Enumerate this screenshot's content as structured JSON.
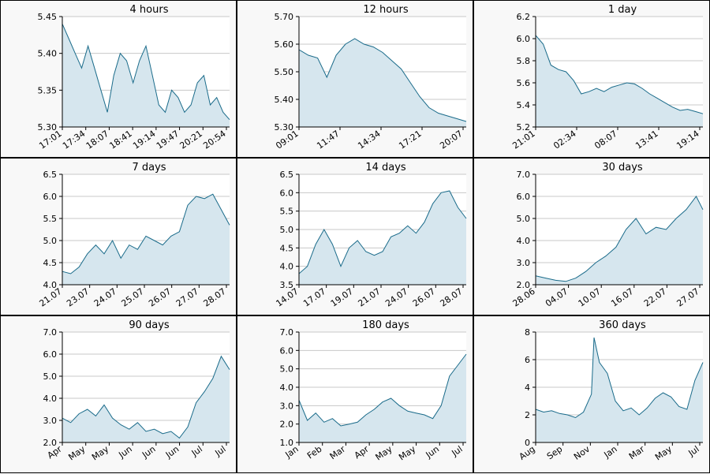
{
  "style": {
    "line_color": "#1a6b8a",
    "fill_color": "#d6e6ee",
    "grid_color": "#c8c8c8"
  },
  "chart_data": [
    {
      "type": "area",
      "title": "4 hours",
      "ylim": [
        5.3,
        5.45
      ],
      "yticks": [
        "5.30",
        "5.35",
        "5.40",
        "5.45"
      ],
      "xticks": [
        "17:01",
        "17:34",
        "18:07",
        "18:41",
        "19:14",
        "19:47",
        "20:21",
        "20:54"
      ],
      "x": [
        0,
        0.3,
        0.6,
        0.9,
        1.2,
        1.5,
        1.8,
        2.1,
        2.4,
        2.7,
        3.0,
        3.3,
        3.6,
        3.9,
        4.2,
        4.5,
        4.8,
        5.1,
        5.4,
        5.7,
        6.0,
        6.3,
        6.6,
        6.9,
        7.2,
        7.5,
        7.8
      ],
      "values": [
        5.44,
        5.42,
        5.4,
        5.38,
        5.41,
        5.38,
        5.35,
        5.32,
        5.37,
        5.4,
        5.39,
        5.36,
        5.39,
        5.41,
        5.37,
        5.33,
        5.32,
        5.35,
        5.34,
        5.32,
        5.33,
        5.36,
        5.37,
        5.33,
        5.34,
        5.32,
        5.31
      ]
    },
    {
      "type": "area",
      "title": "12 hours",
      "ylim": [
        5.3,
        5.7
      ],
      "yticks": [
        "5.30",
        "5.40",
        "5.50",
        "5.60",
        "5.70"
      ],
      "xticks": [
        "09:01",
        "11:47",
        "14:34",
        "17:21",
        "20:07"
      ],
      "x": [
        0,
        0.25,
        0.5,
        0.75,
        1,
        1.25,
        1.5,
        1.75,
        2,
        2.25,
        2.5,
        2.75,
        3,
        3.25,
        3.5,
        3.75,
        4,
        4.25,
        4.5
      ],
      "values": [
        5.58,
        5.56,
        5.55,
        5.48,
        5.56,
        5.6,
        5.62,
        5.6,
        5.59,
        5.57,
        5.54,
        5.51,
        5.46,
        5.41,
        5.37,
        5.35,
        5.34,
        5.33,
        5.32
      ]
    },
    {
      "type": "area",
      "title": "1 day",
      "ylim": [
        5.2,
        6.2
      ],
      "yticks": [
        "5.2",
        "5.4",
        "5.6",
        "5.8",
        "6.0",
        "6.2"
      ],
      "xticks": [
        "21:01",
        "02:34",
        "08:07",
        "13:41",
        "19:14"
      ],
      "x": [
        0,
        0.2,
        0.4,
        0.6,
        0.8,
        1.0,
        1.2,
        1.4,
        1.6,
        1.8,
        2.0,
        2.2,
        2.4,
        2.6,
        2.8,
        3.0,
        3.2,
        3.4,
        3.6,
        3.8,
        4.0,
        4.2,
        4.4
      ],
      "values": [
        6.03,
        5.95,
        5.76,
        5.72,
        5.7,
        5.62,
        5.5,
        5.52,
        5.55,
        5.52,
        5.56,
        5.58,
        5.6,
        5.59,
        5.55,
        5.5,
        5.46,
        5.42,
        5.38,
        5.35,
        5.36,
        5.34,
        5.32
      ]
    },
    {
      "type": "area",
      "title": "7 days",
      "ylim": [
        4.0,
        6.5
      ],
      "yticks": [
        "4.0",
        "4.5",
        "5.0",
        "5.5",
        "6.0",
        "6.5"
      ],
      "xticks": [
        "21.07",
        "23.07",
        "24.07",
        "25.07",
        "26.07",
        "27.07",
        "28.07"
      ],
      "x": [
        0,
        0.3,
        0.6,
        0.9,
        1.2,
        1.5,
        1.8,
        2.1,
        2.4,
        2.7,
        3.0,
        3.3,
        3.6,
        3.9,
        4.2,
        4.5,
        4.8,
        5.1,
        5.4,
        5.7,
        6.0
      ],
      "values": [
        4.3,
        4.25,
        4.4,
        4.7,
        4.9,
        4.7,
        5.0,
        4.6,
        4.9,
        4.8,
        5.1,
        5.0,
        4.9,
        5.1,
        5.2,
        5.8,
        6.0,
        5.95,
        6.05,
        5.7,
        5.35
      ]
    },
    {
      "type": "area",
      "title": "14 days",
      "ylim": [
        3.5,
        6.5
      ],
      "yticks": [
        "3.5",
        "4.0",
        "4.5",
        "5.0",
        "5.5",
        "6.0",
        "6.5"
      ],
      "xticks": [
        "14.07",
        "17.07",
        "19.07",
        "21.07",
        "24.07",
        "26.07",
        "28.07"
      ],
      "x": [
        0,
        0.3,
        0.6,
        0.9,
        1.2,
        1.5,
        1.8,
        2.1,
        2.4,
        2.7,
        3.0,
        3.3,
        3.6,
        3.9,
        4.2,
        4.5,
        4.8,
        5.1,
        5.4,
        5.7,
        6.0
      ],
      "values": [
        3.8,
        4.0,
        4.6,
        5.0,
        4.6,
        4.0,
        4.5,
        4.7,
        4.4,
        4.3,
        4.4,
        4.8,
        4.9,
        5.1,
        4.9,
        5.2,
        5.7,
        6.0,
        6.05,
        5.6,
        5.3
      ]
    },
    {
      "type": "area",
      "title": "30 days",
      "ylim": [
        2.0,
        7.0
      ],
      "yticks": [
        "2.0",
        "3.0",
        "4.0",
        "5.0",
        "6.0",
        "7.0"
      ],
      "xticks": [
        "28.06",
        "04.07",
        "10.07",
        "16.07",
        "22.07",
        "27.07"
      ],
      "x": [
        0,
        0.3,
        0.6,
        0.9,
        1.2,
        1.5,
        1.8,
        2.1,
        2.4,
        2.7,
        3.0,
        3.3,
        3.6,
        3.9,
        4.2,
        4.5,
        4.8,
        5.0
      ],
      "values": [
        2.4,
        2.3,
        2.2,
        2.15,
        2.3,
        2.6,
        3.0,
        3.3,
        3.7,
        4.5,
        5.0,
        4.3,
        4.6,
        4.5,
        5.0,
        5.4,
        6.0,
        5.4
      ]
    },
    {
      "type": "area",
      "title": "90 days",
      "ylim": [
        2.0,
        7.0
      ],
      "yticks": [
        "2.0",
        "3.0",
        "4.0",
        "5.0",
        "6.0",
        "7.0"
      ],
      "xticks": [
        "Apr",
        "May",
        "May",
        "Jun",
        "Jun",
        "Jun",
        "Jul",
        "Jul"
      ],
      "x": [
        0,
        0.35,
        0.7,
        1.05,
        1.4,
        1.75,
        2.1,
        2.45,
        2.8,
        3.15,
        3.5,
        3.85,
        4.2,
        4.55,
        4.9,
        5.25,
        5.6,
        5.95,
        6.3,
        6.65,
        7.0
      ],
      "values": [
        3.1,
        2.9,
        3.3,
        3.5,
        3.2,
        3.7,
        3.1,
        2.8,
        2.6,
        2.9,
        2.5,
        2.6,
        2.4,
        2.5,
        2.2,
        2.7,
        3.8,
        4.3,
        4.9,
        5.9,
        5.3
      ]
    },
    {
      "type": "area",
      "title": "180 days",
      "ylim": [
        1.0,
        7.0
      ],
      "yticks": [
        "1.0",
        "2.0",
        "3.0",
        "4.0",
        "5.0",
        "6.0",
        "7.0"
      ],
      "xticks": [
        "Jan",
        "Feb",
        "Mar",
        "Apr",
        "May",
        "May",
        "Jun",
        "Jul"
      ],
      "x": [
        0,
        0.35,
        0.7,
        1.05,
        1.4,
        1.75,
        2.1,
        2.45,
        2.8,
        3.15,
        3.5,
        3.85,
        4.2,
        4.55,
        4.9,
        5.25,
        5.6,
        5.95,
        6.3,
        6.65,
        7.0
      ],
      "values": [
        3.3,
        2.2,
        2.6,
        2.1,
        2.3,
        1.9,
        2.0,
        2.1,
        2.5,
        2.8,
        3.2,
        3.4,
        3.0,
        2.7,
        2.6,
        2.5,
        2.3,
        3.0,
        4.6,
        5.2,
        5.8
      ]
    },
    {
      "type": "area",
      "title": "360 days",
      "ylim": [
        0,
        8
      ],
      "yticks": [
        "0",
        "2",
        "4",
        "6",
        "8"
      ],
      "xticks": [
        "Aug",
        "Sep",
        "Nov",
        "Jan",
        "Mar",
        "May",
        "Jul"
      ],
      "x": [
        0,
        0.3,
        0.6,
        0.9,
        1.2,
        1.5,
        1.8,
        2.1,
        2.2,
        2.4,
        2.7,
        3.0,
        3.3,
        3.6,
        3.9,
        4.2,
        4.5,
        4.8,
        5.1,
        5.4,
        5.7,
        6.0,
        6.3
      ],
      "values": [
        2.4,
        2.2,
        2.3,
        2.1,
        2.0,
        1.8,
        2.2,
        3.5,
        7.6,
        5.8,
        5.0,
        3.0,
        2.3,
        2.5,
        2.0,
        2.5,
        3.2,
        3.6,
        3.3,
        2.6,
        2.4,
        4.5,
        5.8
      ]
    }
  ]
}
